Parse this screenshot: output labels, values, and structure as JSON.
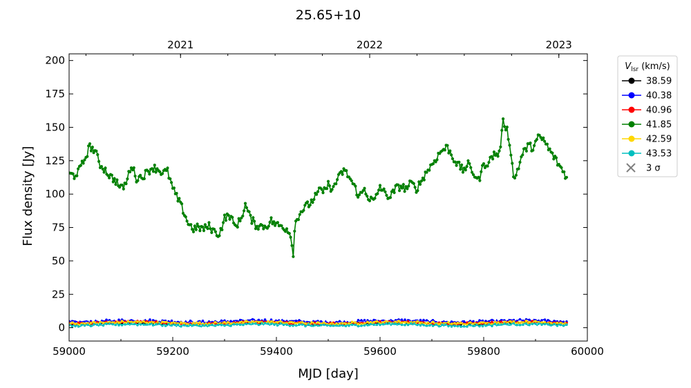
{
  "chart_data": {
    "type": "line",
    "title": "25.65+10",
    "xlabel": "MJD [day]",
    "ylabel": "Flux density [Jy]",
    "xlim": [
      59000,
      60000
    ],
    "ylim": [
      -10,
      205
    ],
    "x_ticks": [
      59000,
      59200,
      59400,
      59600,
      59800,
      60000
    ],
    "y_ticks": [
      0,
      25,
      50,
      75,
      100,
      125,
      150,
      175,
      200
    ],
    "top_axis_ticks": [
      {
        "label": "2021",
        "mjd": 59215
      },
      {
        "label": "2022",
        "mjd": 59580
      },
      {
        "label": "2023",
        "mjd": 59945
      }
    ],
    "legend": {
      "title": "V_lsr (km/s)",
      "title_main": "V",
      "title_sub": "lsr",
      "title_unit": " (km/s)",
      "placement": "outside-right"
    },
    "series": [
      {
        "name": "38.59",
        "color": "#000000",
        "baseline": 3.2,
        "amp": 0.8
      },
      {
        "name": "40.38",
        "color": "#0000ff",
        "baseline": 4.8,
        "amp": 1.0
      },
      {
        "name": "40.96",
        "color": "#ff0000",
        "baseline": 3.6,
        "amp": 0.8
      },
      {
        "name": "41.85",
        "color": "#008000",
        "points": [
          [
            59000,
            115
          ],
          [
            59010,
            114
          ],
          [
            59020,
            118
          ],
          [
            59030,
            126
          ],
          [
            59040,
            136
          ],
          [
            59050,
            132
          ],
          [
            59060,
            122
          ],
          [
            59070,
            118
          ],
          [
            59080,
            113
          ],
          [
            59090,
            110
          ],
          [
            59100,
            104
          ],
          [
            59110,
            108
          ],
          [
            59120,
            122
          ],
          [
            59130,
            112
          ],
          [
            59140,
            113
          ],
          [
            59150,
            116
          ],
          [
            59160,
            120
          ],
          [
            59170,
            119
          ],
          [
            59180,
            116
          ],
          [
            59190,
            117
          ],
          [
            59200,
            104
          ],
          [
            59210,
            96
          ],
          [
            59220,
            88
          ],
          [
            59230,
            78
          ],
          [
            59240,
            74
          ],
          [
            59250,
            75
          ],
          [
            59260,
            74
          ],
          [
            59270,
            76
          ],
          [
            59280,
            72
          ],
          [
            59290,
            70
          ],
          [
            59300,
            82
          ],
          [
            59310,
            84
          ],
          [
            59320,
            76
          ],
          [
            59330,
            80
          ],
          [
            59340,
            92
          ],
          [
            59350,
            82
          ],
          [
            59360,
            77
          ],
          [
            59370,
            76
          ],
          [
            59380,
            76
          ],
          [
            59390,
            80
          ],
          [
            59400,
            77
          ],
          [
            59410,
            76
          ],
          [
            59420,
            74
          ],
          [
            59428,
            70
          ],
          [
            59432,
            53
          ],
          [
            59436,
            78
          ],
          [
            59445,
            86
          ],
          [
            59455,
            90
          ],
          [
            59465,
            93
          ],
          [
            59475,
            98
          ],
          [
            59485,
            103
          ],
          [
            59495,
            102
          ],
          [
            59500,
            112
          ],
          [
            59505,
            100
          ],
          [
            59510,
            106
          ],
          [
            59520,
            112
          ],
          [
            59530,
            118
          ],
          [
            59540,
            113
          ],
          [
            59550,
            106
          ],
          [
            59560,
            98
          ],
          [
            59570,
            104
          ],
          [
            59580,
            96
          ],
          [
            59590,
            95
          ],
          [
            59600,
            106
          ],
          [
            59610,
            100
          ],
          [
            59620,
            98
          ],
          [
            59630,
            104
          ],
          [
            59640,
            106
          ],
          [
            59650,
            104
          ],
          [
            59660,
            108
          ],
          [
            59670,
            104
          ],
          [
            59680,
            110
          ],
          [
            59690,
            117
          ],
          [
            59700,
            122
          ],
          [
            59710,
            128
          ],
          [
            59720,
            133
          ],
          [
            59730,
            135
          ],
          [
            59740,
            128
          ],
          [
            59750,
            122
          ],
          [
            59760,
            118
          ],
          [
            59770,
            122
          ],
          [
            59780,
            116
          ],
          [
            59790,
            110
          ],
          [
            59800,
            122
          ],
          [
            59810,
            124
          ],
          [
            59820,
            130
          ],
          [
            59830,
            130
          ],
          [
            59838,
            155
          ],
          [
            59845,
            148
          ],
          [
            59852,
            134
          ],
          [
            59858,
            110
          ],
          [
            59865,
            118
          ],
          [
            59875,
            130
          ],
          [
            59885,
            136
          ],
          [
            59895,
            135
          ],
          [
            59905,
            142
          ],
          [
            59915,
            141
          ],
          [
            59925,
            134
          ],
          [
            59935,
            128
          ],
          [
            59945,
            122
          ],
          [
            59955,
            116
          ],
          [
            59960,
            112
          ]
        ]
      },
      {
        "name": "42.59",
        "color": "#ffd700",
        "baseline": 3.6,
        "amp": 1.0
      },
      {
        "name": "43.53",
        "color": "#00bfbf",
        "baseline": 2.0,
        "amp": 0.8
      },
      {
        "name": "3 σ",
        "color": "#808080",
        "marker": "x"
      }
    ]
  }
}
